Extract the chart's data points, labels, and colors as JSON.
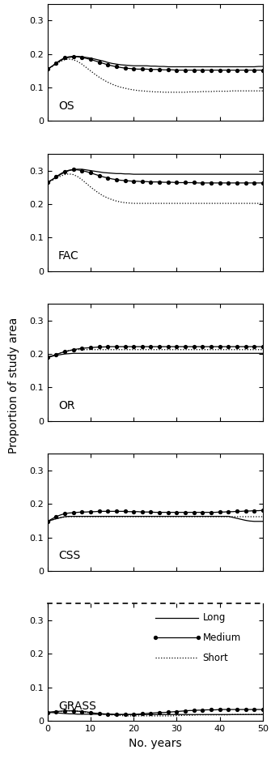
{
  "panels": [
    "OS",
    "FAC",
    "OR",
    "CSS",
    "GRASS"
  ],
  "ylim": [
    0,
    0.35
  ],
  "yticks": [
    0,
    0.1,
    0.2,
    0.3
  ],
  "ytick_labels": [
    "0",
    "0.1",
    "0.2",
    "0.3"
  ],
  "xlim": [
    0,
    50
  ],
  "xticks": [
    0,
    10,
    20,
    30,
    40,
    50
  ],
  "xlabel": "No. years",
  "ylabel": "Proportion of study area",
  "figsize": [
    3.35,
    9.52
  ],
  "dpi": 100,
  "OS": {
    "long": [
      0.155,
      0.163,
      0.172,
      0.18,
      0.187,
      0.19,
      0.192,
      0.193,
      0.192,
      0.19,
      0.188,
      0.185,
      0.182,
      0.179,
      0.175,
      0.172,
      0.17,
      0.168,
      0.167,
      0.166,
      0.165,
      0.165,
      0.165,
      0.165,
      0.164,
      0.164,
      0.163,
      0.163,
      0.162,
      0.162,
      0.162,
      0.162,
      0.162,
      0.162,
      0.162,
      0.162,
      0.162,
      0.162,
      0.162,
      0.162,
      0.162,
      0.162,
      0.162,
      0.162,
      0.162,
      0.162,
      0.162,
      0.162,
      0.162,
      0.163,
      0.163
    ],
    "medium": [
      0.155,
      0.163,
      0.173,
      0.182,
      0.189,
      0.192,
      0.193,
      0.192,
      0.19,
      0.187,
      0.184,
      0.18,
      0.176,
      0.172,
      0.168,
      0.165,
      0.162,
      0.16,
      0.158,
      0.157,
      0.156,
      0.155,
      0.155,
      0.155,
      0.154,
      0.154,
      0.154,
      0.153,
      0.153,
      0.153,
      0.152,
      0.152,
      0.152,
      0.152,
      0.152,
      0.152,
      0.152,
      0.152,
      0.152,
      0.152,
      0.152,
      0.152,
      0.152,
      0.152,
      0.152,
      0.152,
      0.152,
      0.152,
      0.152,
      0.152,
      0.152
    ],
    "short": [
      0.155,
      0.162,
      0.17,
      0.178,
      0.183,
      0.185,
      0.183,
      0.178,
      0.17,
      0.16,
      0.15,
      0.14,
      0.131,
      0.123,
      0.116,
      0.11,
      0.105,
      0.101,
      0.098,
      0.095,
      0.093,
      0.091,
      0.09,
      0.089,
      0.088,
      0.087,
      0.087,
      0.086,
      0.086,
      0.086,
      0.086,
      0.086,
      0.086,
      0.087,
      0.087,
      0.087,
      0.088,
      0.088,
      0.088,
      0.089,
      0.089,
      0.089,
      0.089,
      0.09,
      0.09,
      0.09,
      0.09,
      0.09,
      0.09,
      0.09,
      0.09
    ]
  },
  "FAC": {
    "long": [
      0.265,
      0.272,
      0.28,
      0.288,
      0.295,
      0.3,
      0.303,
      0.304,
      0.304,
      0.302,
      0.3,
      0.298,
      0.296,
      0.294,
      0.293,
      0.292,
      0.291,
      0.291,
      0.29,
      0.29,
      0.289,
      0.289,
      0.289,
      0.289,
      0.289,
      0.289,
      0.289,
      0.289,
      0.289,
      0.289,
      0.289,
      0.289,
      0.289,
      0.289,
      0.289,
      0.289,
      0.289,
      0.289,
      0.289,
      0.289,
      0.289,
      0.289,
      0.289,
      0.289,
      0.289,
      0.289,
      0.289,
      0.289,
      0.289,
      0.289,
      0.289
    ],
    "medium": [
      0.265,
      0.272,
      0.281,
      0.29,
      0.297,
      0.301,
      0.303,
      0.302,
      0.3,
      0.297,
      0.293,
      0.289,
      0.285,
      0.281,
      0.278,
      0.275,
      0.273,
      0.271,
      0.27,
      0.269,
      0.268,
      0.268,
      0.267,
      0.267,
      0.266,
      0.266,
      0.266,
      0.265,
      0.265,
      0.265,
      0.264,
      0.264,
      0.264,
      0.264,
      0.264,
      0.263,
      0.263,
      0.263,
      0.263,
      0.263,
      0.263,
      0.263,
      0.263,
      0.263,
      0.263,
      0.263,
      0.263,
      0.263,
      0.263,
      0.263,
      0.263
    ],
    "short": [
      0.265,
      0.27,
      0.277,
      0.283,
      0.288,
      0.29,
      0.288,
      0.282,
      0.273,
      0.262,
      0.251,
      0.241,
      0.232,
      0.224,
      0.218,
      0.213,
      0.209,
      0.206,
      0.204,
      0.203,
      0.202,
      0.202,
      0.202,
      0.202,
      0.202,
      0.202,
      0.202,
      0.202,
      0.202,
      0.202,
      0.202,
      0.202,
      0.202,
      0.202,
      0.202,
      0.202,
      0.202,
      0.202,
      0.202,
      0.202,
      0.202,
      0.202,
      0.202,
      0.202,
      0.202,
      0.202,
      0.202,
      0.202,
      0.202,
      0.202,
      0.202
    ]
  },
  "OR": {
    "long": [
      0.19,
      0.193,
      0.196,
      0.198,
      0.2,
      0.201,
      0.202,
      0.202,
      0.202,
      0.202,
      0.202,
      0.202,
      0.202,
      0.202,
      0.202,
      0.202,
      0.202,
      0.202,
      0.202,
      0.202,
      0.202,
      0.202,
      0.202,
      0.202,
      0.202,
      0.202,
      0.202,
      0.202,
      0.202,
      0.202,
      0.202,
      0.202,
      0.202,
      0.202,
      0.202,
      0.202,
      0.202,
      0.202,
      0.202,
      0.202,
      0.202,
      0.202,
      0.202,
      0.202,
      0.202,
      0.202,
      0.202,
      0.202,
      0.202,
      0.202,
      0.202
    ],
    "medium": [
      0.19,
      0.194,
      0.198,
      0.203,
      0.207,
      0.21,
      0.213,
      0.215,
      0.217,
      0.218,
      0.219,
      0.22,
      0.221,
      0.221,
      0.222,
      0.222,
      0.222,
      0.222,
      0.222,
      0.222,
      0.222,
      0.222,
      0.222,
      0.222,
      0.222,
      0.222,
      0.222,
      0.222,
      0.222,
      0.222,
      0.222,
      0.222,
      0.222,
      0.222,
      0.222,
      0.222,
      0.222,
      0.222,
      0.222,
      0.222,
      0.222,
      0.222,
      0.222,
      0.222,
      0.222,
      0.222,
      0.222,
      0.222,
      0.222,
      0.222,
      0.222
    ],
    "short": [
      0.19,
      0.194,
      0.198,
      0.203,
      0.207,
      0.21,
      0.212,
      0.213,
      0.213,
      0.213,
      0.213,
      0.213,
      0.213,
      0.213,
      0.213,
      0.213,
      0.213,
      0.213,
      0.213,
      0.213,
      0.213,
      0.213,
      0.213,
      0.213,
      0.213,
      0.213,
      0.213,
      0.213,
      0.213,
      0.213,
      0.213,
      0.213,
      0.213,
      0.213,
      0.213,
      0.213,
      0.213,
      0.213,
      0.213,
      0.213,
      0.213,
      0.213,
      0.213,
      0.213,
      0.213,
      0.213,
      0.213,
      0.213,
      0.213,
      0.213,
      0.213
    ]
  },
  "CSS": {
    "long": [
      0.148,
      0.152,
      0.156,
      0.159,
      0.162,
      0.163,
      0.163,
      0.163,
      0.163,
      0.163,
      0.163,
      0.163,
      0.163,
      0.163,
      0.163,
      0.163,
      0.163,
      0.163,
      0.163,
      0.163,
      0.163,
      0.163,
      0.163,
      0.163,
      0.163,
      0.163,
      0.163,
      0.163,
      0.163,
      0.163,
      0.163,
      0.163,
      0.163,
      0.163,
      0.163,
      0.163,
      0.163,
      0.163,
      0.163,
      0.163,
      0.163,
      0.163,
      0.163,
      0.16,
      0.157,
      0.154,
      0.151,
      0.149,
      0.148,
      0.148,
      0.148
    ],
    "medium": [
      0.148,
      0.155,
      0.162,
      0.167,
      0.171,
      0.173,
      0.174,
      0.175,
      0.176,
      0.176,
      0.177,
      0.177,
      0.178,
      0.178,
      0.178,
      0.178,
      0.178,
      0.178,
      0.178,
      0.177,
      0.177,
      0.177,
      0.176,
      0.176,
      0.176,
      0.175,
      0.175,
      0.175,
      0.175,
      0.175,
      0.175,
      0.175,
      0.175,
      0.175,
      0.175,
      0.175,
      0.175,
      0.175,
      0.175,
      0.175,
      0.176,
      0.176,
      0.177,
      0.177,
      0.178,
      0.178,
      0.179,
      0.179,
      0.18,
      0.18,
      0.181
    ],
    "short": [
      0.148,
      0.152,
      0.156,
      0.159,
      0.161,
      0.162,
      0.162,
      0.162,
      0.162,
      0.162,
      0.162,
      0.162,
      0.162,
      0.162,
      0.162,
      0.162,
      0.162,
      0.162,
      0.162,
      0.162,
      0.162,
      0.162,
      0.162,
      0.162,
      0.162,
      0.162,
      0.162,
      0.162,
      0.162,
      0.162,
      0.162,
      0.162,
      0.162,
      0.162,
      0.162,
      0.162,
      0.162,
      0.162,
      0.162,
      0.162,
      0.162,
      0.162,
      0.162,
      0.162,
      0.162,
      0.162,
      0.162,
      0.162,
      0.162,
      0.162,
      0.162
    ]
  },
  "GRASS": {
    "long": [
      0.025,
      0.025,
      0.024,
      0.023,
      0.022,
      0.021,
      0.021,
      0.02,
      0.02,
      0.02,
      0.02,
      0.02,
      0.02,
      0.02,
      0.02,
      0.02,
      0.019,
      0.019,
      0.019,
      0.019,
      0.019,
      0.019,
      0.019,
      0.019,
      0.019,
      0.019,
      0.019,
      0.019,
      0.019,
      0.019,
      0.019,
      0.019,
      0.019,
      0.019,
      0.019,
      0.019,
      0.019,
      0.019,
      0.019,
      0.019,
      0.019,
      0.019,
      0.019,
      0.019,
      0.019,
      0.019,
      0.019,
      0.019,
      0.019,
      0.019,
      0.019
    ],
    "medium": [
      0.025,
      0.027,
      0.028,
      0.029,
      0.03,
      0.03,
      0.03,
      0.029,
      0.028,
      0.027,
      0.025,
      0.023,
      0.022,
      0.021,
      0.02,
      0.019,
      0.019,
      0.019,
      0.019,
      0.019,
      0.019,
      0.02,
      0.021,
      0.022,
      0.023,
      0.024,
      0.025,
      0.025,
      0.026,
      0.027,
      0.028,
      0.029,
      0.03,
      0.031,
      0.031,
      0.032,
      0.032,
      0.033,
      0.033,
      0.033,
      0.034,
      0.034,
      0.034,
      0.034,
      0.034,
      0.034,
      0.034,
      0.034,
      0.034,
      0.034,
      0.034
    ],
    "short": [
      0.025,
      0.026,
      0.027,
      0.028,
      0.029,
      0.03,
      0.03,
      0.029,
      0.028,
      0.026,
      0.024,
      0.022,
      0.021,
      0.02,
      0.019,
      0.018,
      0.017,
      0.016,
      0.015,
      0.015,
      0.015,
      0.015,
      0.015,
      0.015,
      0.015,
      0.015,
      0.015,
      0.015,
      0.015,
      0.015,
      0.016,
      0.016,
      0.017,
      0.017,
      0.017,
      0.018,
      0.018,
      0.018,
      0.018,
      0.018,
      0.018,
      0.018,
      0.018,
      0.019,
      0.019,
      0.019,
      0.019,
      0.019,
      0.019,
      0.019,
      0.019
    ]
  }
}
